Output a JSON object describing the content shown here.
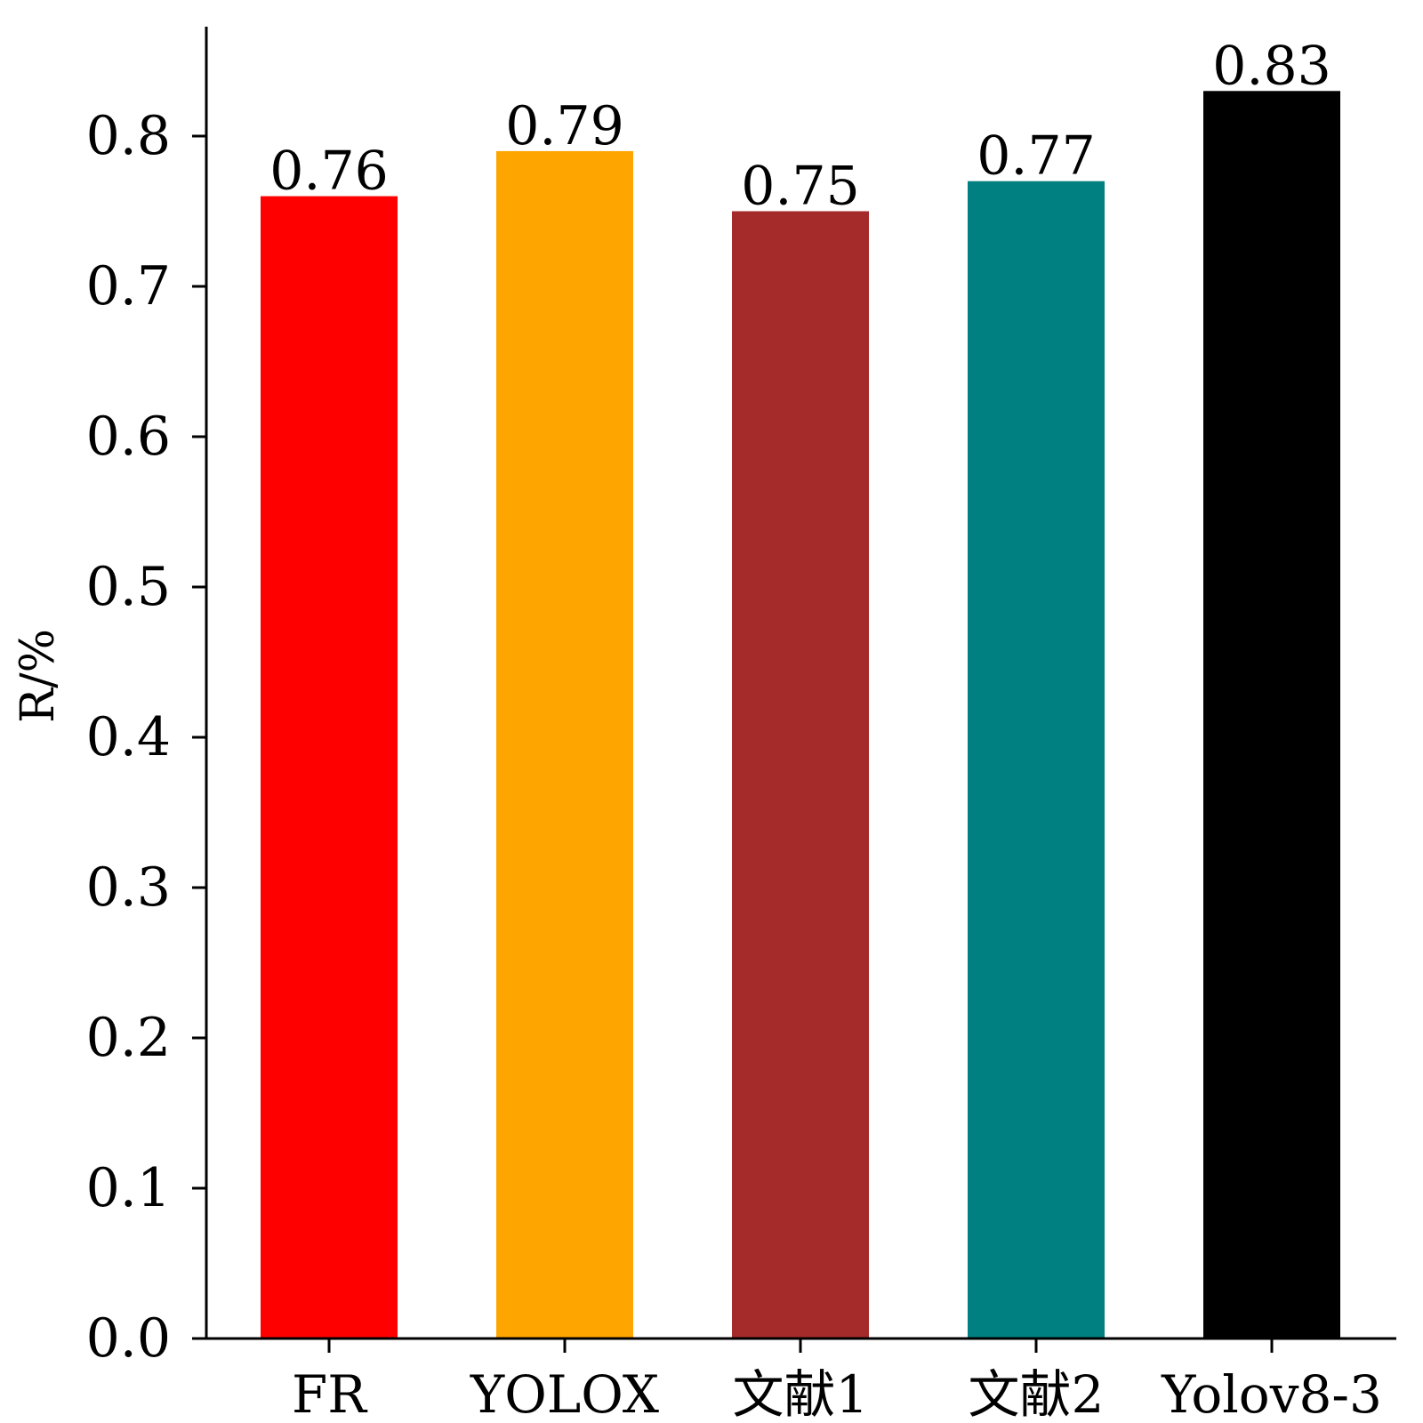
{
  "chart_data": {
    "type": "bar",
    "title": "",
    "xlabel": "",
    "ylabel": "R/%",
    "categories": [
      "FR",
      "YOLOX",
      "文献1",
      "文献2",
      "Yolov8-3"
    ],
    "values": [
      0.76,
      0.79,
      0.75,
      0.77,
      0.83
    ],
    "value_labels": [
      "0.76",
      "0.79",
      "0.75",
      "0.77",
      "0.83"
    ],
    "colors": [
      "#ff0000",
      "#ffa500",
      "#a52a2a",
      "#008080",
      "#000000"
    ],
    "ylim": [
      0,
      0.873
    ],
    "yticks": [
      0.0,
      0.1,
      0.2,
      0.3,
      0.4,
      0.5,
      0.6,
      0.7,
      0.8
    ],
    "ytick_labels": [
      "0.0",
      "0.1",
      "0.2",
      "0.3",
      "0.4",
      "0.5",
      "0.6",
      "0.7",
      "0.8"
    ],
    "grid": false,
    "legend": "none"
  }
}
